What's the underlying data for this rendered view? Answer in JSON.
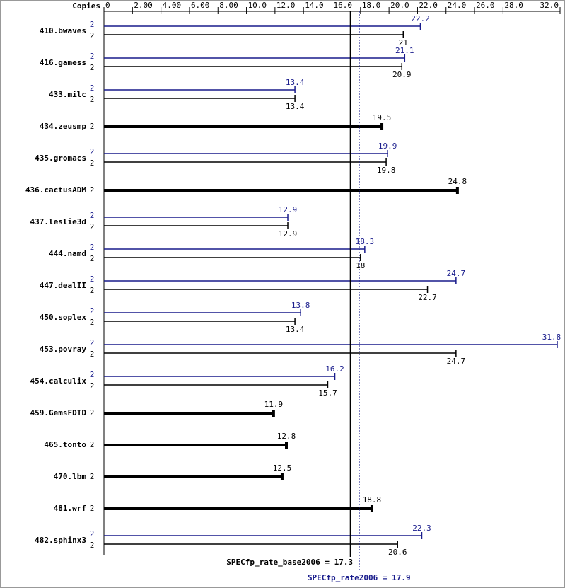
{
  "chart_data": {
    "type": "bar",
    "copies_label": "Copies",
    "categories": [
      "410.bwaves",
      "416.gamess",
      "433.milc",
      "434.zeusmp",
      "435.gromacs",
      "436.cactusADM",
      "437.leslie3d",
      "444.namd",
      "447.dealII",
      "450.soplex",
      "453.povray",
      "454.calculix",
      "459.GemsFDTD",
      "465.tonto",
      "470.lbm",
      "481.wrf",
      "482.sphinx3"
    ],
    "series": [
      {
        "color": "#191c8c",
        "values": [
          22.2,
          21.1,
          13.4,
          null,
          19.9,
          null,
          12.9,
          18.3,
          24.7,
          13.8,
          31.8,
          16.2,
          null,
          null,
          null,
          null,
          22.3
        ],
        "copies": [
          2,
          2,
          2,
          null,
          2,
          null,
          2,
          2,
          2,
          2,
          2,
          2,
          null,
          null,
          null,
          null,
          2
        ]
      },
      {
        "color": "#000000",
        "values": [
          21.0,
          20.9,
          13.4,
          19.5,
          19.8,
          24.8,
          12.9,
          18.0,
          22.7,
          13.4,
          24.7,
          15.7,
          11.9,
          12.8,
          12.5,
          18.8,
          20.6
        ],
        "copies": [
          2,
          2,
          2,
          2,
          2,
          2,
          2,
          2,
          2,
          2,
          2,
          2,
          2,
          2,
          2,
          2,
          2
        ]
      }
    ],
    "xlim": [
      0,
      32
    ],
    "xticks": [
      0,
      {
        "value": 2,
        "label": "2.00"
      },
      {
        "value": 4,
        "label": "4.00"
      },
      {
        "value": 6,
        "label": "6.00"
      },
      {
        "value": 8,
        "label": "8.00"
      },
      {
        "value": 10,
        "label": "10.0"
      },
      {
        "value": 12,
        "label": "12.0"
      },
      {
        "value": 14,
        "label": "14.0"
      },
      {
        "value": 16,
        "label": "16.0"
      },
      {
        "value": 18,
        "label": "18.0"
      },
      {
        "value": 20,
        "label": "20.0"
      },
      {
        "value": 22,
        "label": "22.0"
      },
      {
        "value": 24,
        "label": "24.0"
      },
      {
        "value": 26,
        "label": "26.0"
      },
      {
        "value": 28,
        "label": "28.0"
      },
      {
        "value": 32,
        "label": "32.0"
      }
    ],
    "reference_lines": [
      {
        "label": "SPECfp_rate_base2006 = 17.3",
        "value": 17.3,
        "color": "#000000",
        "dashed": false
      },
      {
        "label": "SPECfp_rate2006 = 17.9",
        "value": 17.9,
        "color": "#191c8c",
        "dashed": true
      }
    ]
  }
}
